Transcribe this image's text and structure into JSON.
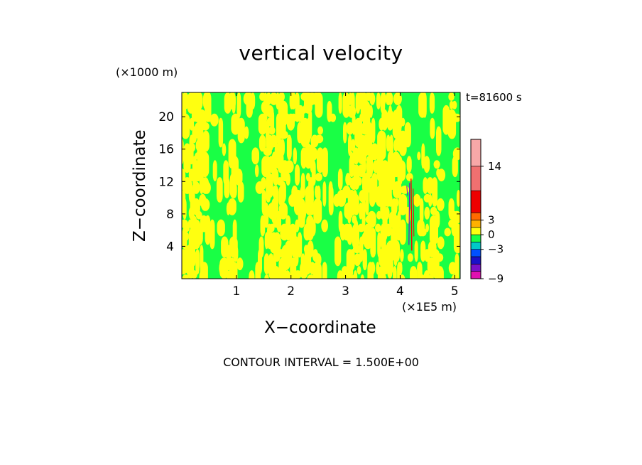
{
  "chart_data": {
    "type": "heatmap",
    "title": "vertical velocity",
    "time_label": "t=81600 s",
    "xlabel": "X−coordinate",
    "xunits": "(×1E5 m)",
    "ylabel": "Z−coordinate",
    "yunits": "(×1000 m)",
    "xlim": [
      0,
      5.1
    ],
    "ylim": [
      0,
      23
    ],
    "x_ticks": [
      "1",
      "2",
      "3",
      "4",
      "5"
    ],
    "x_tick_values": [
      1,
      2,
      3,
      4,
      5
    ],
    "y_ticks": [
      "4",
      "8",
      "12",
      "16",
      "20"
    ],
    "y_tick_values": [
      4,
      8,
      12,
      16,
      20
    ],
    "contour_interval": "CONTOUR INTERVAL = 1.500E+00",
    "colorbar": {
      "levels": [
        -9,
        -7.5,
        -6,
        -4.5,
        -3,
        -1.5,
        0,
        1.5,
        3,
        4.5,
        9,
        14,
        19.5
      ],
      "colors": [
        "#e010b0",
        "#7a10c8",
        "#1a10c8",
        "#0050ff",
        "#00c8c8",
        "#19ff45",
        "#ffff10",
        "#ffb000",
        "#ff6a00",
        "#ee0000",
        "#f07070",
        "#f7a8a8"
      ],
      "tick_labels": [
        "14",
        "3",
        "0",
        "−3",
        "−9"
      ],
      "tick_values": [
        14,
        3,
        0,
        -3,
        -9
      ]
    },
    "field": {
      "background_color": "#19ff45",
      "positive_color": "#ffff10",
      "updraft_color": "#ff0000",
      "downdraft_color": "#7a10c8",
      "dominant_values": [
        -1.5,
        1.5
      ],
      "updraft_x": 4.2,
      "updraft_z_range": [
        4,
        12
      ]
    }
  }
}
